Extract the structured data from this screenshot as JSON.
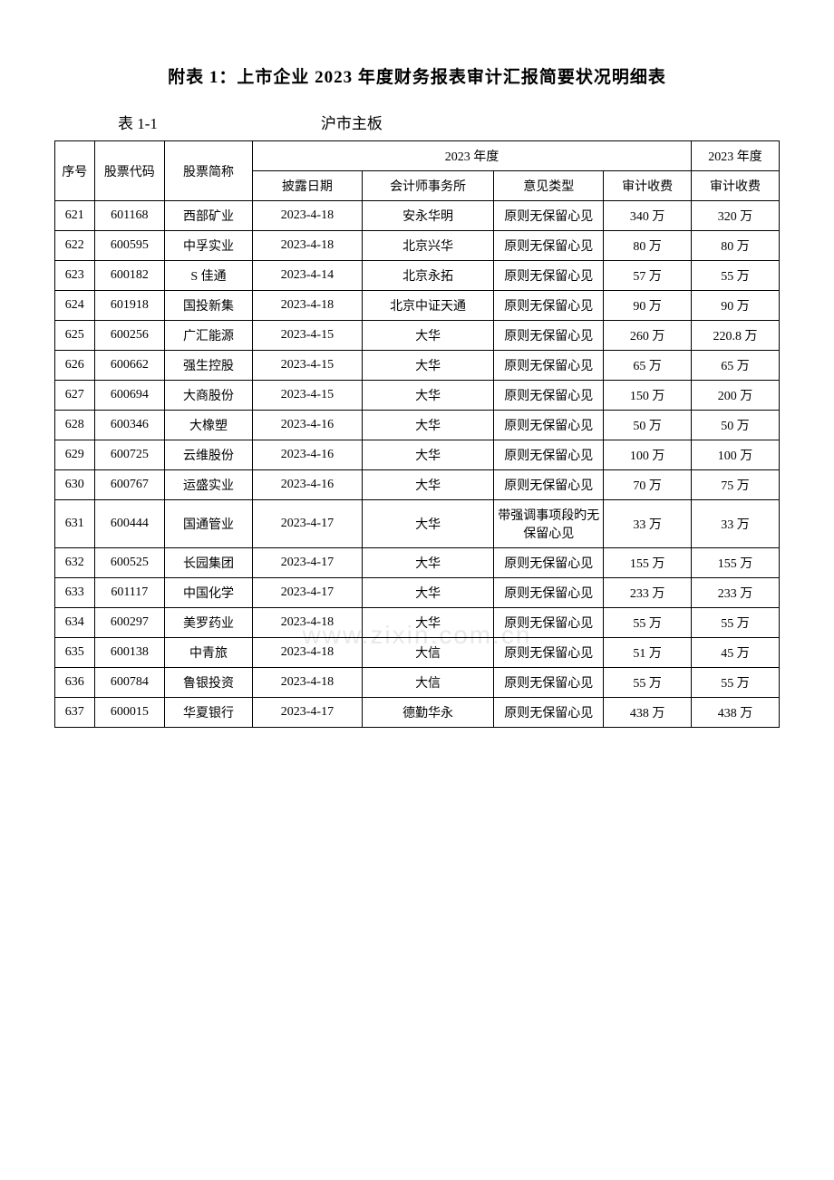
{
  "title": "附表 1：上市企业 2023 年度财务报表审计汇报简要状况明细表",
  "tableLabel": "表 1-1",
  "tableCaption": "沪市主板",
  "watermark": "www.zixin.com.cn",
  "headers": {
    "seq": "序号",
    "code": "股票代码",
    "name": "股票简称",
    "period": "2023 年度",
    "period2": "2023 年度",
    "date": "披露日期",
    "firm": "会计师事务所",
    "opinion": "意见类型",
    "fee": "审计收费",
    "fee2": "审计收费"
  },
  "rows": [
    {
      "seq": "621",
      "code": "601168",
      "name": "西部矿业",
      "date": "2023-4-18",
      "firm": "安永华明",
      "opinion": "原则无保留心见",
      "fee": "340 万",
      "fee2": "320 万"
    },
    {
      "seq": "622",
      "code": "600595",
      "name": "中孚实业",
      "date": "2023-4-18",
      "firm": "北京兴华",
      "opinion": "原则无保留心见",
      "fee": "80 万",
      "fee2": "80 万"
    },
    {
      "seq": "623",
      "code": "600182",
      "name": "S 佳通",
      "date": "2023-4-14",
      "firm": "北京永拓",
      "opinion": "原则无保留心见",
      "fee": "57 万",
      "fee2": "55 万"
    },
    {
      "seq": "624",
      "code": "601918",
      "name": "国投新集",
      "date": "2023-4-18",
      "firm": "北京中证天通",
      "opinion": "原则无保留心见",
      "fee": "90 万",
      "fee2": "90 万"
    },
    {
      "seq": "625",
      "code": "600256",
      "name": "广汇能源",
      "date": "2023-4-15",
      "firm": "大华",
      "opinion": "原则无保留心见",
      "fee": "260 万",
      "fee2": "220.8 万"
    },
    {
      "seq": "626",
      "code": "600662",
      "name": "强生控股",
      "date": "2023-4-15",
      "firm": "大华",
      "opinion": "原则无保留心见",
      "fee": "65 万",
      "fee2": "65 万"
    },
    {
      "seq": "627",
      "code": "600694",
      "name": "大商股份",
      "date": "2023-4-15",
      "firm": "大华",
      "opinion": "原则无保留心见",
      "fee": "150 万",
      "fee2": "200 万"
    },
    {
      "seq": "628",
      "code": "600346",
      "name": "大橡塑",
      "date": "2023-4-16",
      "firm": "大华",
      "opinion": "原则无保留心见",
      "fee": "50 万",
      "fee2": "50 万"
    },
    {
      "seq": "629",
      "code": "600725",
      "name": "云维股份",
      "date": "2023-4-16",
      "firm": "大华",
      "opinion": "原则无保留心见",
      "fee": "100 万",
      "fee2": "100 万"
    },
    {
      "seq": "630",
      "code": "600767",
      "name": "运盛实业",
      "date": "2023-4-16",
      "firm": "大华",
      "opinion": "原则无保留心见",
      "fee": "70 万",
      "fee2": "75 万"
    },
    {
      "seq": "631",
      "code": "600444",
      "name": "国通管业",
      "date": "2023-4-17",
      "firm": "大华",
      "opinion": "带强调事项段旳无保留心见",
      "fee": "33 万",
      "fee2": "33 万"
    },
    {
      "seq": "632",
      "code": "600525",
      "name": "长园集团",
      "date": "2023-4-17",
      "firm": "大华",
      "opinion": "原则无保留心见",
      "fee": "155 万",
      "fee2": "155 万"
    },
    {
      "seq": "633",
      "code": "601117",
      "name": "中国化学",
      "date": "2023-4-17",
      "firm": "大华",
      "opinion": "原则无保留心见",
      "fee": "233 万",
      "fee2": "233 万"
    },
    {
      "seq": "634",
      "code": "600297",
      "name": "美罗药业",
      "date": "2023-4-18",
      "firm": "大华",
      "opinion": "原则无保留心见",
      "fee": "55 万",
      "fee2": "55 万"
    },
    {
      "seq": "635",
      "code": "600138",
      "name": "中青旅",
      "date": "2023-4-18",
      "firm": "大信",
      "opinion": "原则无保留心见",
      "fee": "51 万",
      "fee2": "45 万"
    },
    {
      "seq": "636",
      "code": "600784",
      "name": "鲁银投资",
      "date": "2023-4-18",
      "firm": "大信",
      "opinion": "原则无保留心见",
      "fee": "55 万",
      "fee2": "55 万"
    },
    {
      "seq": "637",
      "code": "600015",
      "name": "华夏银行",
      "date": "2023-4-17",
      "firm": "德勤华永",
      "opinion": "原则无保留心见",
      "fee": "438 万",
      "fee2": "438 万"
    }
  ],
  "styling": {
    "background_color": "#ffffff",
    "text_color": "#000000",
    "border_color": "#000000",
    "watermark_color": "#e8e8e8",
    "title_fontsize": 19,
    "body_fontsize": 14,
    "font_family": "SimSun"
  }
}
